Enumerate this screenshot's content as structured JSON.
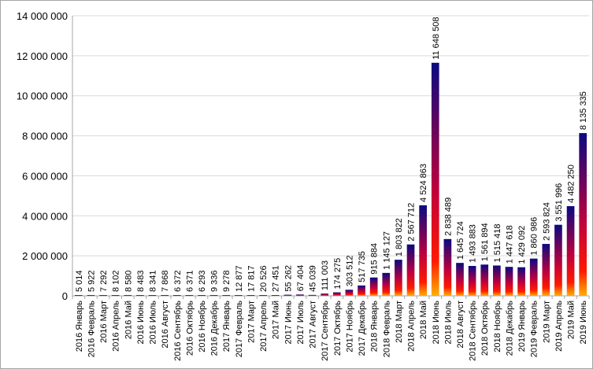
{
  "chart_data": {
    "type": "bar",
    "title": "",
    "xlabel": "",
    "ylabel": "",
    "ylim": [
      0,
      14000000
    ],
    "yticks": [
      0,
      2000000,
      4000000,
      6000000,
      8000000,
      10000000,
      12000000,
      14000000
    ],
    "ytick_labels": [
      "0",
      "2 000 000",
      "4 000 000",
      "6 000 000",
      "8 000 000",
      "10 000 000",
      "12 000 000",
      "14 000 000"
    ],
    "grid": true,
    "legend": "none",
    "colors": {
      "bar_top": "#0a0a80",
      "bar_mid": "#c0003c",
      "bar_low": "#ff1a00",
      "bar_base": "#ffb000",
      "grid": "#d9d9d9",
      "axis": "#a6a6a6"
    },
    "categories": [
      "2016 Январь",
      "2016 Февраль",
      "2016 Март",
      "2016 Апрель",
      "2016 Май",
      "2016 Июнь",
      "2016 Июль",
      "2016 Август",
      "2016 Сентябрь",
      "2016 Октябрь",
      "2016 Ноябрь",
      "2016 Декабрь",
      "2017 Январь",
      "2017 Февраль",
      "2017 Март",
      "2017 Апрель",
      "2017 Май",
      "2017 Июнь",
      "2017 Июль",
      "2017 Август",
      "2017 Сентябрь",
      "2017 Октябрь",
      "2017 Ноябрь",
      "2017 Декабрь",
      "2018 Январь",
      "2018 Февраль",
      "2018 Март",
      "2018 Апрель",
      "2018 Май",
      "2018 Июнь",
      "2018 Июль",
      "2018 Август",
      "2018 Сентябрь",
      "2018 Октябрь",
      "2018 Ноябрь",
      "2018 Декабрь",
      "2019 Январь",
      "2019 Февраль",
      "2019 Март",
      "2019 Апрель",
      "2019 Май",
      "2019 Июнь"
    ],
    "values": [
      5014,
      5922,
      7292,
      8102,
      8580,
      8483,
      8341,
      7868,
      6372,
      6371,
      6293,
      9336,
      9278,
      12877,
      17817,
      20526,
      27451,
      55262,
      67404,
      45039,
      111003,
      174275,
      303512,
      517735,
      915884,
      1145127,
      1803822,
      2567712,
      4524863,
      11648508,
      2838489,
      1645724,
      1493883,
      1561894,
      1515418,
      1447618,
      1429092,
      1860986,
      2593824,
      3551996,
      4482250,
      8135335
    ],
    "data_labels": [
      "5 014",
      "5 922",
      "7 292",
      "8 102",
      "8 580",
      "8 483",
      "8 341",
      "7 868",
      "6 372",
      "6 371",
      "6 293",
      "9 336",
      "9 278",
      "12 877",
      "17 817",
      "20 526",
      "27 451",
      "55 262",
      "67 404",
      "45 039",
      "111 003",
      "174 275",
      "303 512",
      "517 735",
      "915 884",
      "1 145 127",
      "1 803 822",
      "2 567 712",
      "4 524 863",
      "11 648 508",
      "2 838 489",
      "1 645 724",
      "1 493 883",
      "1 561 894",
      "1 515 418",
      "1 447 618",
      "1 429 092",
      "1 860 986",
      "2 593 824",
      "3 551 996",
      "4 482 250",
      "8 135 335"
    ]
  }
}
